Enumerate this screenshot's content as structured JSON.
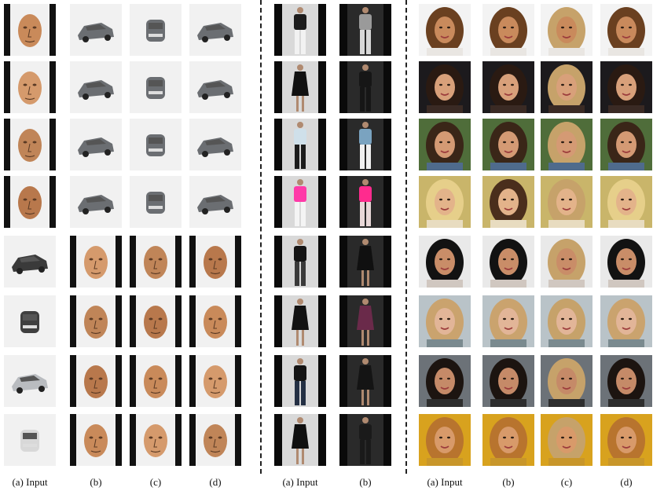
{
  "figure": {
    "panels": [
      {
        "id": "faces-cars",
        "captions": [
          "(a) Input",
          "(b)",
          "(c)",
          "(d)"
        ]
      },
      {
        "id": "clothing",
        "captions": [
          "(a) Input",
          "(b)"
        ]
      },
      {
        "id": "celebrity",
        "captions": [
          "(a) Input",
          "(b)",
          "(c)",
          "(d)"
        ]
      }
    ]
  }
}
